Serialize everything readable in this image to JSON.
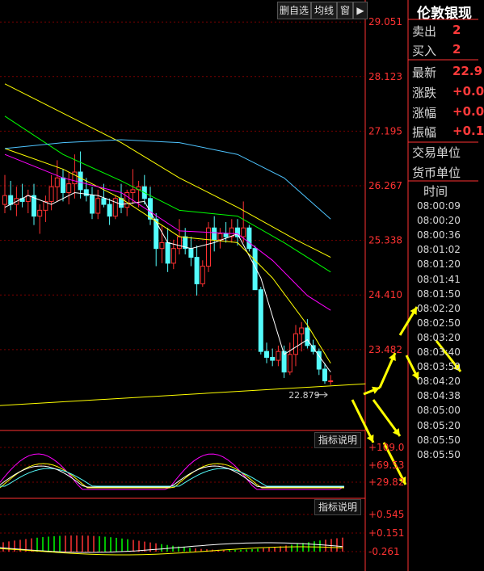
{
  "toolbar": {
    "delete_self_select": "删自选",
    "ma_line": "均线",
    "window": "窗",
    "arrow_icon": "play-right-icon"
  },
  "price_axis": {
    "labels": [
      "29.051",
      "28.123",
      "27.195",
      "26.267",
      "25.338",
      "24.410",
      "23.482"
    ]
  },
  "annotation_low": "22.879",
  "panels": {
    "indicator1": {
      "title": "指标说明",
      "labels": [
        "+109.0",
        "+69.53",
        "+29.82"
      ]
    },
    "indicator2": {
      "title": "指标说明",
      "labels": [
        "+0.545",
        "+0.151",
        "-0.261"
      ]
    }
  },
  "quote": {
    "name": "伦敦银现",
    "rows": [
      {
        "label": "卖出",
        "value": "2"
      },
      {
        "label": "买入",
        "value": "2"
      },
      {
        "label": "最新",
        "value": "22.9"
      },
      {
        "label": "涨跌",
        "value": "+0.0"
      },
      {
        "label": "涨幅",
        "value": "+0.0"
      },
      {
        "label": "振幅",
        "value": "+0.1"
      }
    ],
    "trade_unit": "交易单位",
    "currency_unit": "货币单位",
    "time_header": "时间",
    "times": [
      "08:00:09",
      "08:00:20",
      "08:00:36",
      "08:01:02",
      "08:01:20",
      "08:01:41",
      "08:01:50",
      "08:02:20",
      "08:02:50",
      "08:03:20",
      "08:03:40",
      "08:03:50",
      "08:04:20",
      "08:04:38",
      "08:05:00",
      "08:05:20",
      "08:05:50",
      "08:05:50"
    ]
  },
  "colors": {
    "up": "#ff3232",
    "down": "#54fcfc",
    "grid": "#7a0000",
    "axis": "#ff3232",
    "arrow": "#ffff00",
    "ma5": "#ffffff",
    "ma10": "#ffff00",
    "ma20": "#ff00ff",
    "ma30": "#00ff00",
    "ma60": "#ffff00",
    "ma120": "#4ec4ff"
  },
  "chart_data": {
    "type": "candlestick",
    "y_ticks": [
      29.051,
      28.123,
      27.195,
      26.267,
      25.338,
      24.41,
      23.482
    ],
    "ylim": [
      22.45,
      29.15
    ],
    "candles": [
      {
        "o": 25.95,
        "h": 26.45,
        "l": 25.8,
        "c": 26.1
      },
      {
        "o": 26.1,
        "h": 26.35,
        "l": 25.85,
        "c": 25.95
      },
      {
        "o": 25.95,
        "h": 26.25,
        "l": 25.75,
        "c": 26.05
      },
      {
        "o": 26.05,
        "h": 26.3,
        "l": 25.9,
        "c": 26.0
      },
      {
        "o": 26.0,
        "h": 26.2,
        "l": 25.8,
        "c": 26.1
      },
      {
        "o": 26.1,
        "h": 26.3,
        "l": 25.6,
        "c": 25.75
      },
      {
        "o": 25.75,
        "h": 25.95,
        "l": 25.45,
        "c": 25.85
      },
      {
        "o": 25.85,
        "h": 26.1,
        "l": 25.65,
        "c": 26.0
      },
      {
        "o": 26.0,
        "h": 26.45,
        "l": 25.85,
        "c": 26.25
      },
      {
        "o": 26.25,
        "h": 26.7,
        "l": 26.0,
        "c": 26.4
      },
      {
        "o": 26.4,
        "h": 26.55,
        "l": 26.0,
        "c": 26.15
      },
      {
        "o": 26.15,
        "h": 26.5,
        "l": 25.95,
        "c": 26.3
      },
      {
        "o": 26.3,
        "h": 26.8,
        "l": 26.05,
        "c": 26.5
      },
      {
        "o": 26.5,
        "h": 26.85,
        "l": 26.05,
        "c": 26.2
      },
      {
        "o": 26.2,
        "h": 26.4,
        "l": 26.0,
        "c": 26.1
      },
      {
        "o": 26.1,
        "h": 26.25,
        "l": 25.7,
        "c": 25.8
      },
      {
        "o": 25.8,
        "h": 26.2,
        "l": 25.7,
        "c": 26.05
      },
      {
        "o": 26.05,
        "h": 26.3,
        "l": 25.9,
        "c": 25.95
      },
      {
        "o": 25.95,
        "h": 26.05,
        "l": 25.6,
        "c": 25.75
      },
      {
        "o": 25.75,
        "h": 26.1,
        "l": 25.7,
        "c": 26.05
      },
      {
        "o": 26.05,
        "h": 26.3,
        "l": 25.8,
        "c": 25.9
      },
      {
        "o": 25.9,
        "h": 26.2,
        "l": 25.75,
        "c": 26.15
      },
      {
        "o": 26.15,
        "h": 26.55,
        "l": 25.95,
        "c": 26.2
      },
      {
        "o": 26.2,
        "h": 26.35,
        "l": 25.9,
        "c": 26.25
      },
      {
        "o": 26.25,
        "h": 26.45,
        "l": 25.95,
        "c": 26.05
      },
      {
        "o": 26.05,
        "h": 26.25,
        "l": 25.6,
        "c": 25.7
      },
      {
        "o": 25.7,
        "h": 25.8,
        "l": 24.9,
        "c": 25.2
      },
      {
        "o": 25.2,
        "h": 25.6,
        "l": 24.95,
        "c": 25.3
      },
      {
        "o": 25.3,
        "h": 25.55,
        "l": 24.8,
        "c": 24.95
      },
      {
        "o": 24.95,
        "h": 25.35,
        "l": 24.85,
        "c": 25.2
      },
      {
        "o": 25.2,
        "h": 25.7,
        "l": 25.1,
        "c": 25.4
      },
      {
        "o": 25.4,
        "h": 25.55,
        "l": 25.1,
        "c": 25.2
      },
      {
        "o": 25.2,
        "h": 25.4,
        "l": 24.9,
        "c": 25.05
      },
      {
        "o": 25.05,
        "h": 25.25,
        "l": 24.4,
        "c": 24.6
      },
      {
        "o": 24.6,
        "h": 25.0,
        "l": 24.55,
        "c": 24.9
      },
      {
        "o": 24.9,
        "h": 25.65,
        "l": 24.8,
        "c": 25.55
      },
      {
        "o": 25.55,
        "h": 25.75,
        "l": 25.15,
        "c": 25.35
      },
      {
        "o": 25.35,
        "h": 25.55,
        "l": 25.2,
        "c": 25.45
      },
      {
        "o": 25.45,
        "h": 25.65,
        "l": 25.3,
        "c": 25.4
      },
      {
        "o": 25.4,
        "h": 25.7,
        "l": 25.3,
        "c": 25.55
      },
      {
        "o": 25.55,
        "h": 25.7,
        "l": 25.25,
        "c": 25.4
      },
      {
        "o": 25.4,
        "h": 26.0,
        "l": 25.3,
        "c": 25.55
      },
      {
        "o": 25.55,
        "h": 25.6,
        "l": 25.15,
        "c": 25.2
      },
      {
        "o": 25.2,
        "h": 25.25,
        "l": 24.5,
        "c": 24.5
      },
      {
        "o": 24.5,
        "h": 24.55,
        "l": 23.4,
        "c": 23.45
      },
      {
        "o": 23.45,
        "h": 23.6,
        "l": 23.25,
        "c": 23.35
      },
      {
        "o": 23.35,
        "h": 23.5,
        "l": 23.2,
        "c": 23.3
      },
      {
        "o": 23.3,
        "h": 23.55,
        "l": 23.2,
        "c": 23.45
      },
      {
        "o": 23.45,
        "h": 23.55,
        "l": 23.0,
        "c": 23.1
      },
      {
        "o": 23.1,
        "h": 23.6,
        "l": 23.05,
        "c": 23.4
      },
      {
        "o": 23.4,
        "h": 23.9,
        "l": 23.2,
        "c": 23.75
      },
      {
        "o": 23.75,
        "h": 23.95,
        "l": 23.45,
        "c": 23.85
      },
      {
        "o": 23.85,
        "h": 24.0,
        "l": 23.5,
        "c": 23.55
      },
      {
        "o": 23.55,
        "h": 23.65,
        "l": 23.4,
        "c": 23.45
      },
      {
        "o": 23.45,
        "h": 23.5,
        "l": 23.05,
        "c": 23.15
      },
      {
        "o": 23.15,
        "h": 23.25,
        "l": 22.9,
        "c": 22.95
      },
      {
        "o": 22.95,
        "h": 23.05,
        "l": 22.88,
        "c": 22.95
      }
    ],
    "ma_lines": [
      {
        "color": "#ffffff",
        "from": [
          0,
          25.9
        ],
        "pts": [
          [
            0,
            25.9
          ],
          [
            4,
            26.1
          ],
          [
            8,
            25.95
          ],
          [
            12,
            26.15
          ],
          [
            16,
            26.1
          ],
          [
            20,
            25.95
          ],
          [
            24,
            26.0
          ],
          [
            28,
            25.3
          ],
          [
            32,
            25.2
          ],
          [
            36,
            25.3
          ],
          [
            40,
            25.45
          ],
          [
            44,
            24.7
          ],
          [
            48,
            23.4
          ],
          [
            52,
            23.65
          ],
          [
            56,
            23.1
          ]
        ]
      },
      {
        "color": "#ffff00",
        "pts": [
          [
            0,
            26.9
          ],
          [
            10,
            26.55
          ],
          [
            20,
            26.05
          ],
          [
            30,
            25.4
          ],
          [
            40,
            25.3
          ],
          [
            46,
            24.7
          ],
          [
            52,
            23.9
          ],
          [
            56,
            23.25
          ]
        ]
      },
      {
        "color": "#ff00ff",
        "pts": [
          [
            0,
            26.8
          ],
          [
            10,
            26.4
          ],
          [
            20,
            26.15
          ],
          [
            30,
            25.5
          ],
          [
            40,
            25.45
          ],
          [
            46,
            25.0
          ],
          [
            52,
            24.4
          ],
          [
            56,
            24.15
          ]
        ]
      },
      {
        "color": "#00ff00",
        "pts": [
          [
            0,
            27.45
          ],
          [
            10,
            26.8
          ],
          [
            20,
            26.35
          ],
          [
            30,
            25.85
          ],
          [
            40,
            25.75
          ],
          [
            48,
            25.3
          ],
          [
            56,
            24.8
          ]
        ]
      },
      {
        "color": "#ffff00",
        "pts": [
          [
            0,
            28.0
          ],
          [
            10,
            27.5
          ],
          [
            20,
            27.0
          ],
          [
            30,
            26.4
          ],
          [
            40,
            25.9
          ],
          [
            50,
            25.35
          ],
          [
            56,
            25.05
          ]
        ]
      },
      {
        "color": "#4ec4ff",
        "pts": [
          [
            0,
            26.9
          ],
          [
            10,
            27.0
          ],
          [
            20,
            27.05
          ],
          [
            30,
            27.0
          ],
          [
            40,
            26.8
          ],
          [
            48,
            26.4
          ],
          [
            56,
            25.7
          ]
        ]
      },
      {
        "color": "#ffff00",
        "pts": [
          [
            -6,
            22.5
          ],
          [
            62,
            22.9
          ]
        ]
      }
    ],
    "low_marker": {
      "index": 56,
      "value": 22.879
    }
  }
}
